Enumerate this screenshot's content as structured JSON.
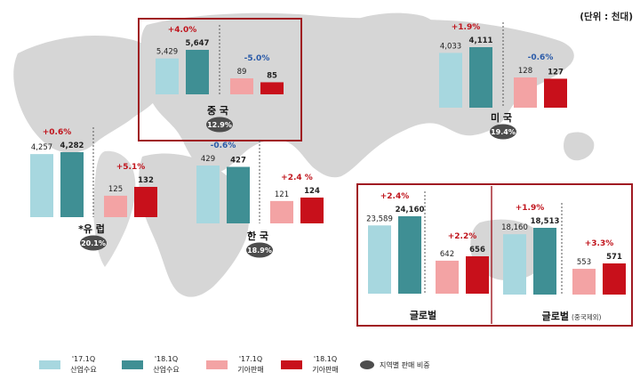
{
  "unit_label": "(단위 : 천대)",
  "colors": {
    "industry_prev": "#a7d7df",
    "industry_curr": "#3f8f94",
    "kia_prev": "#f3a3a4",
    "kia_curr": "#c8101b",
    "share_badge": "#4d4d4d",
    "box_border": "#a01a22",
    "growth_pos": "#c0141c",
    "growth_neg": "#2a5aa8",
    "map": "#d6d6d6"
  },
  "legend": [
    {
      "period": "'17.1Q",
      "label": "산업수요",
      "color_key": "industry_prev"
    },
    {
      "period": "'18.1Q",
      "label": "산업수요",
      "color_key": "industry_curr"
    },
    {
      "period": "'17.1Q",
      "label": "기아판매",
      "color_key": "kia_prev"
    },
    {
      "period": "'18.1Q",
      "label": "기아판매",
      "color_key": "kia_curr"
    },
    {
      "period": "",
      "label": "지역별 판매 비중",
      "color_key": "share_badge"
    }
  ],
  "chart_data": [
    {
      "type": "bar",
      "region": "중 국",
      "share": "12.9%",
      "categories": [
        "'17.1Q",
        "'18.1Q"
      ],
      "series": [
        {
          "name": "산업수요",
          "values": [
            5429,
            5647
          ],
          "labels": [
            "5,429",
            "5,647"
          ],
          "growth": "+4.0%"
        },
        {
          "name": "기아판매",
          "values": [
            89,
            85
          ],
          "labels": [
            "89",
            "85"
          ],
          "growth": "-5.0%"
        }
      ]
    },
    {
      "type": "bar",
      "region": "미 국",
      "share": "19.4%",
      "categories": [
        "'17.1Q",
        "'18.1Q"
      ],
      "series": [
        {
          "name": "산업수요",
          "values": [
            4033,
            4111
          ],
          "labels": [
            "4,033",
            "4,111"
          ],
          "growth": "+1.9%"
        },
        {
          "name": "기아판매",
          "values": [
            128,
            127
          ],
          "labels": [
            "128",
            "127"
          ],
          "growth": "-0.6%"
        }
      ]
    },
    {
      "type": "bar",
      "region": "*유 럽",
      "share": "20.1%",
      "categories": [
        "'17.1Q",
        "'18.1Q"
      ],
      "series": [
        {
          "name": "산업수요",
          "values": [
            4257,
            4282
          ],
          "labels": [
            "4,257",
            "4,282"
          ],
          "growth": "+0.6%"
        },
        {
          "name": "기아판매",
          "values": [
            125,
            132
          ],
          "labels": [
            "125",
            "132"
          ],
          "growth": "+5.1%"
        }
      ]
    },
    {
      "type": "bar",
      "region": "한 국",
      "share": "18.9%",
      "categories": [
        "'17.1Q",
        "'18.1Q"
      ],
      "series": [
        {
          "name": "산업수요",
          "values": [
            429,
            427
          ],
          "labels": [
            "429",
            "427"
          ],
          "growth": "-0.6%"
        },
        {
          "name": "기아판매",
          "values": [
            121,
            124
          ],
          "labels": [
            "121",
            "124"
          ],
          "growth": "+2.4 %"
        }
      ]
    },
    {
      "type": "bar",
      "region": "글로벌",
      "share": "",
      "categories": [
        "'17.1Q",
        "'18.1Q"
      ],
      "series": [
        {
          "name": "산업수요",
          "values": [
            23589,
            24160
          ],
          "labels": [
            "23,589",
            "24,160"
          ],
          "growth": "+2.4%"
        },
        {
          "name": "기아판매",
          "values": [
            642,
            656
          ],
          "labels": [
            "642",
            "656"
          ],
          "growth": "+2.2%"
        }
      ]
    },
    {
      "type": "bar",
      "region": "글로벌",
      "region_note": "(중국제외)",
      "share": "",
      "categories": [
        "'17.1Q",
        "'18.1Q"
      ],
      "series": [
        {
          "name": "산업수요",
          "values": [
            18160,
            18513
          ],
          "labels": [
            "18,160",
            "18,513"
          ],
          "growth": "+1.9%"
        },
        {
          "name": "기아판매",
          "values": [
            553,
            571
          ],
          "labels": [
            "553",
            "571"
          ],
          "growth": "+3.3%"
        }
      ]
    }
  ]
}
